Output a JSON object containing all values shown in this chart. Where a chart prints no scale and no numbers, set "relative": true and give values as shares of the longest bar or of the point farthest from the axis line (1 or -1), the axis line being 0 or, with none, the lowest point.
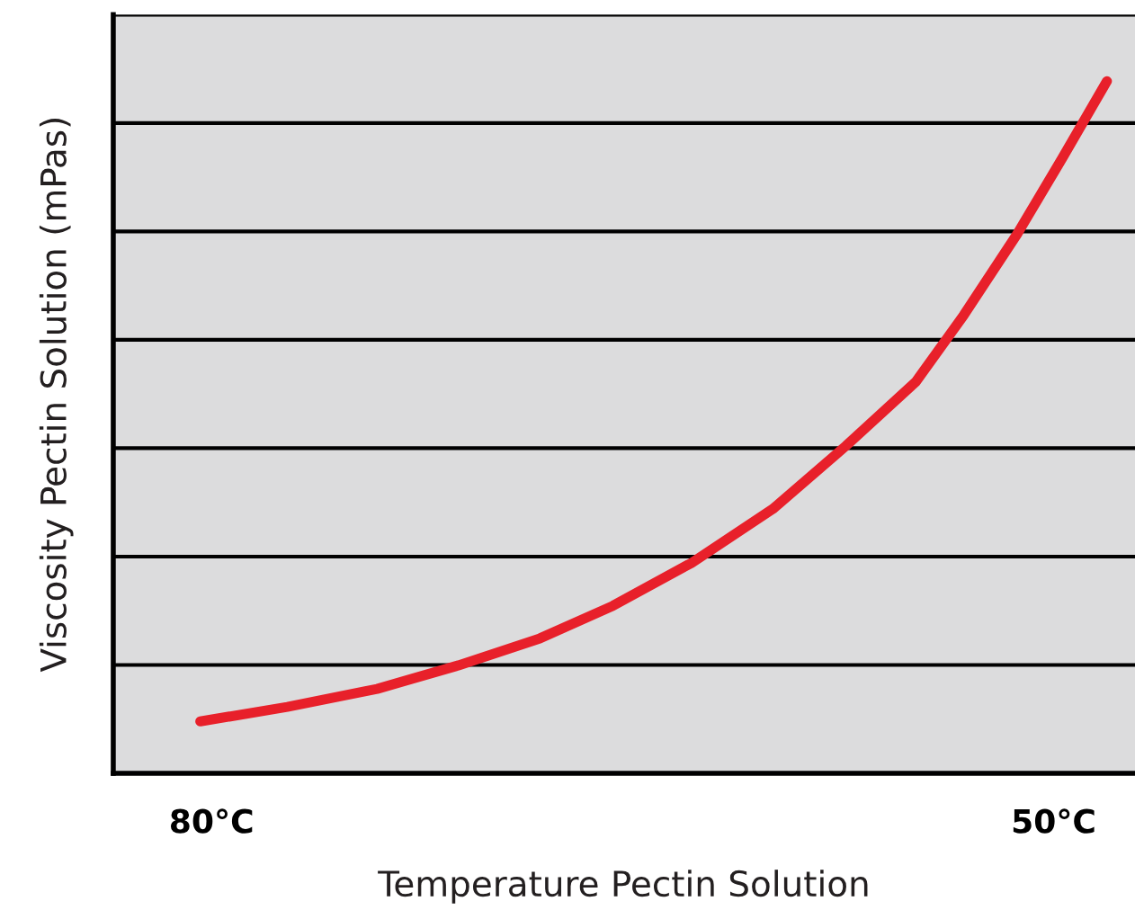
{
  "chart_data": {
    "type": "line",
    "xlabel": "Temperature Pectin Solution",
    "ylabel": "Viscosity Pectin Solution (mPas)",
    "relative": true,
    "xlim": [
      83.5,
      47.1
    ],
    "xticks": [
      {
        "value": 80,
        "label": "80°C"
      },
      {
        "value": 50,
        "label": "50°C"
      }
    ],
    "grid": "y",
    "marker": "none",
    "line_style": "solid",
    "series": [
      {
        "color": "#e8202a",
        "x": [
          80.4,
          77.3,
          74.1,
          71.2,
          68.3,
          65.7,
          62.9,
          60.0,
          57.4,
          54.9,
          53.2,
          51.3,
          49.7,
          48.1
        ],
        "values": [
          0.075,
          0.096,
          0.122,
          0.156,
          0.195,
          0.242,
          0.304,
          0.382,
          0.473,
          0.566,
          0.662,
          0.779,
          0.888,
          1.0
        ]
      }
    ]
  }
}
